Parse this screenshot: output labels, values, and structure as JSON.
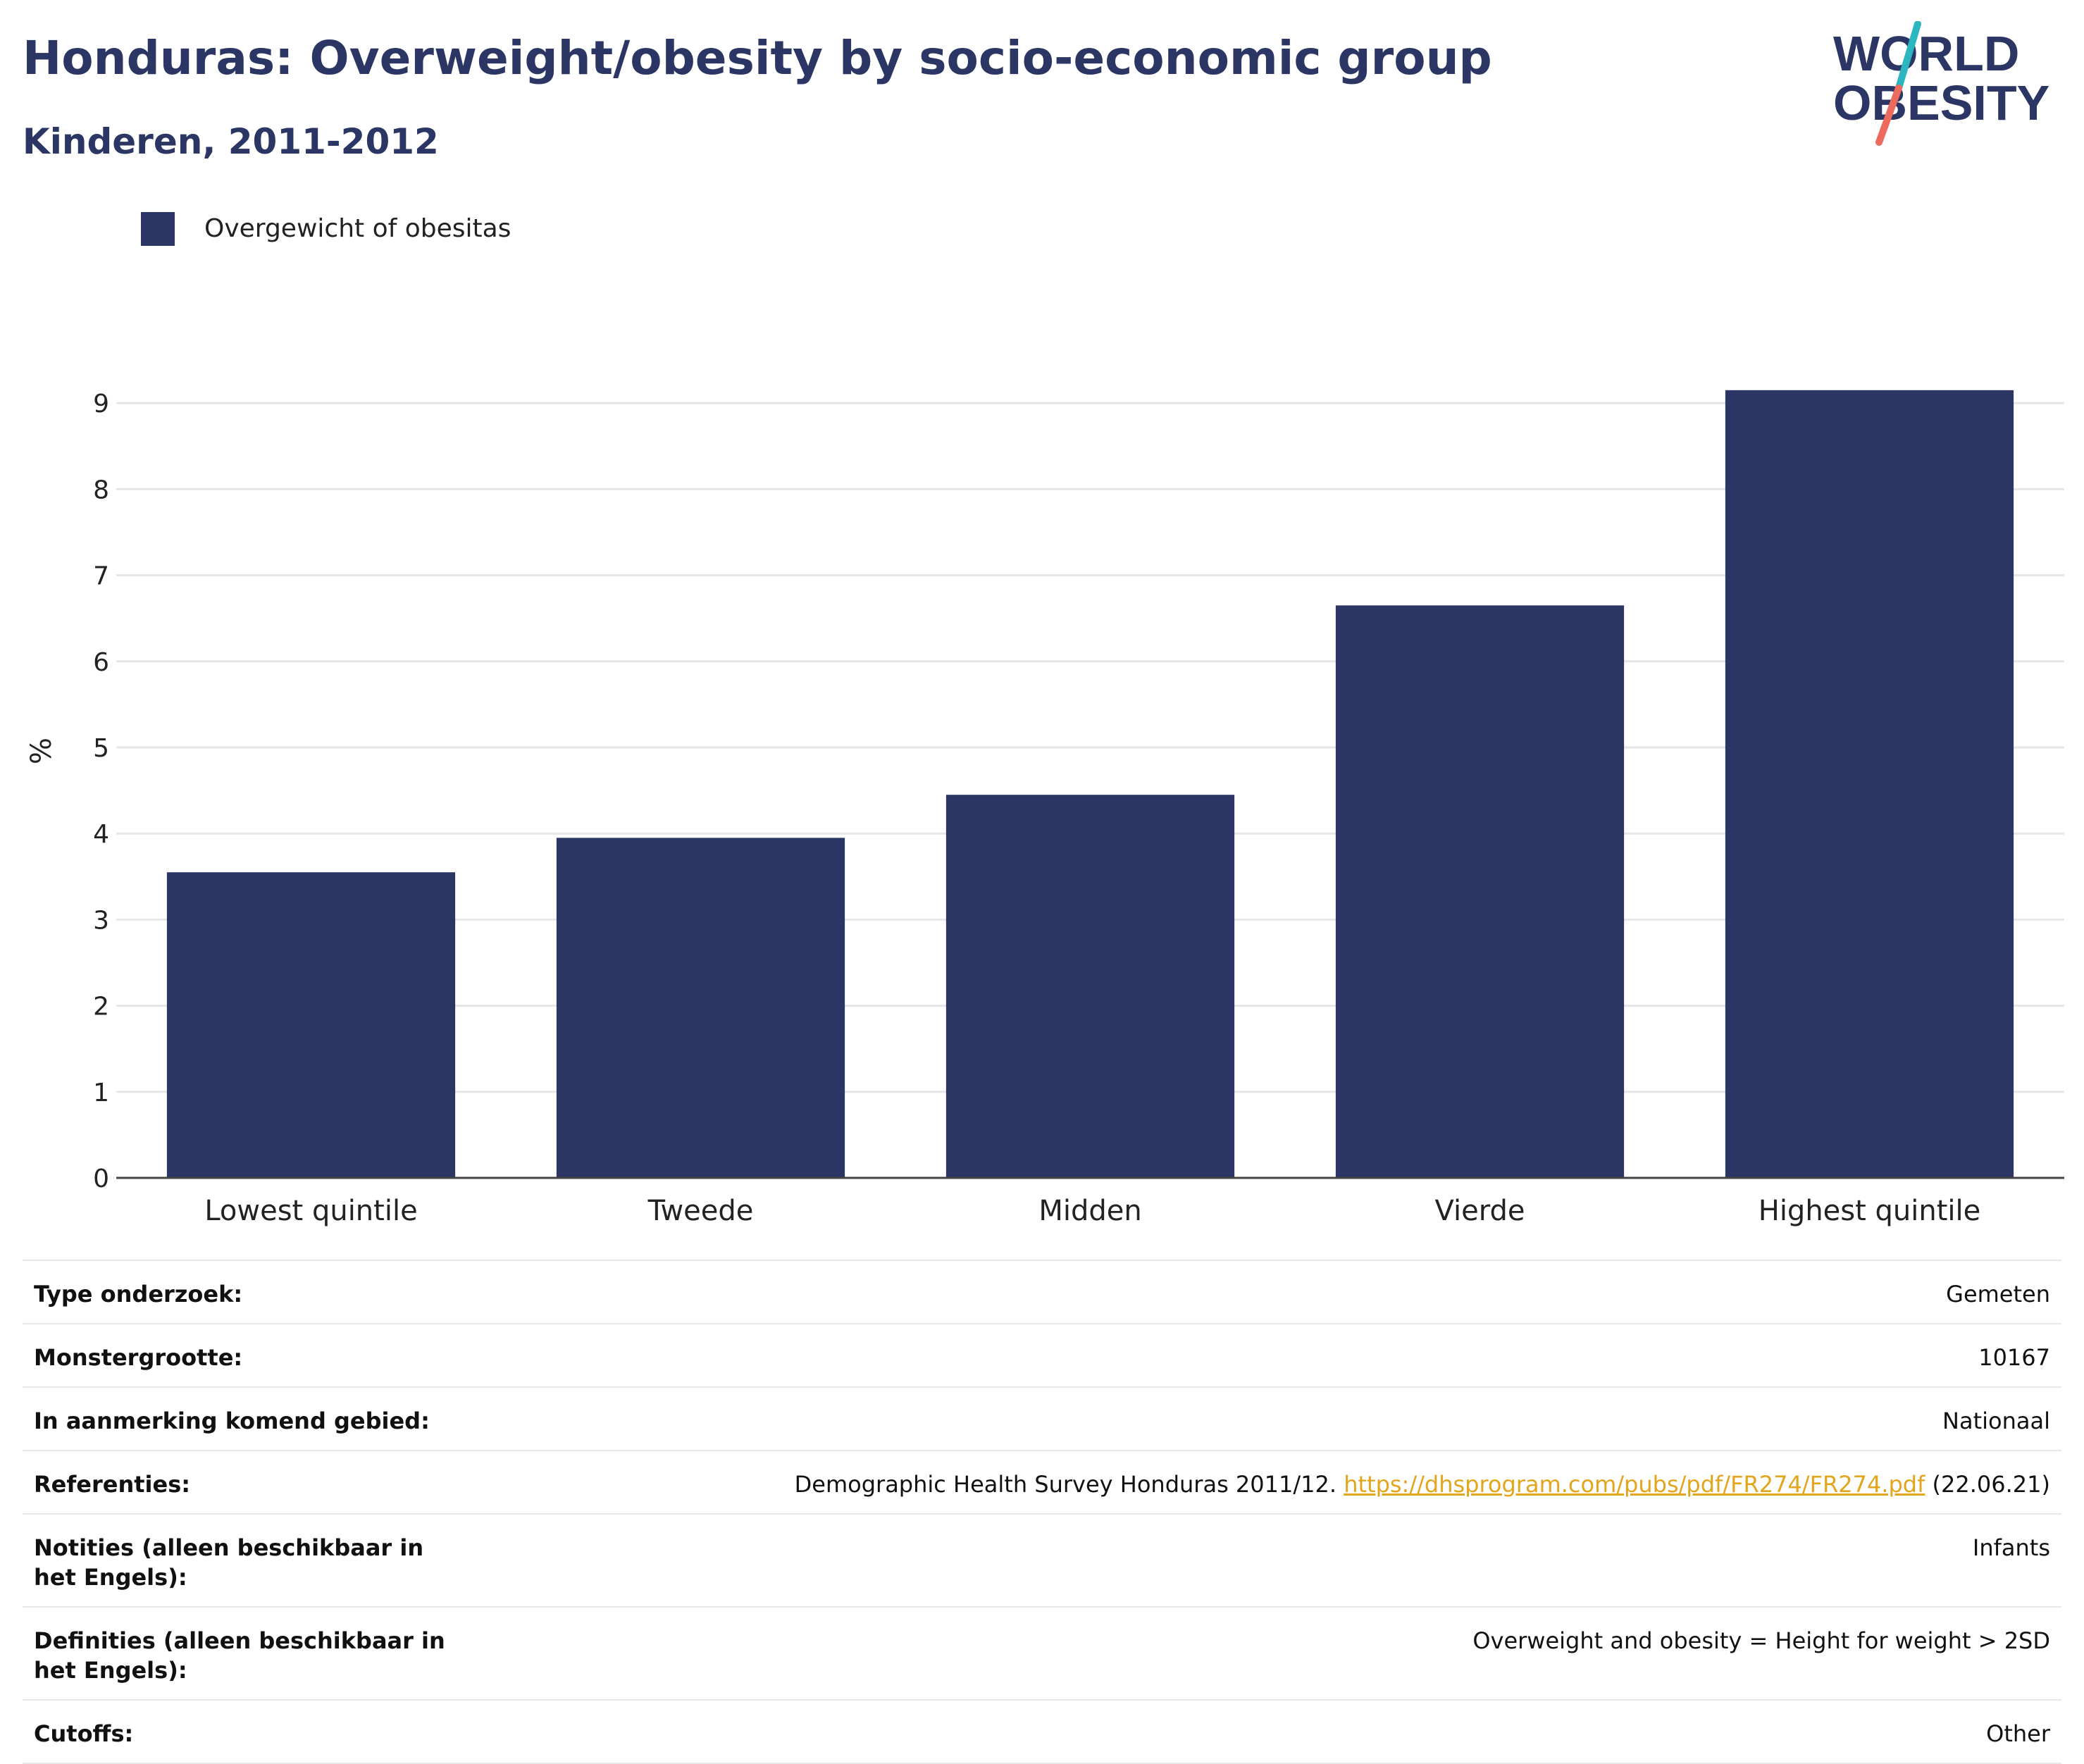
{
  "header": {
    "title": "Honduras: Overweight/obesity by socio-economic group",
    "subtitle": "Kinderen, 2011-2012"
  },
  "logo": {
    "line1": "WORLD",
    "line2": "OBESITY",
    "colors": {
      "text": "#2b3664",
      "slash_top": "#2bb6c0",
      "slash_bottom": "#ec6a5e"
    }
  },
  "legend": {
    "label": "Overgewicht of obesitas"
  },
  "chart_data": {
    "type": "bar",
    "categories": [
      "Lowest quintile",
      "Tweede",
      "Midden",
      "Vierde",
      "Highest quintile"
    ],
    "series": [
      {
        "name": "Overgewicht of obesitas",
        "values": [
          3.55,
          3.95,
          4.45,
          6.65,
          9.15
        ],
        "color": "#2b3664"
      }
    ],
    "ylabel": "%",
    "ylim": [
      0,
      10
    ],
    "yticks": [
      0,
      1,
      2,
      3,
      4,
      5,
      6,
      7,
      8,
      9
    ],
    "grid": true,
    "legend_position": "top-left"
  },
  "details": [
    {
      "key": "Type onderzoek:",
      "value": "Gemeten"
    },
    {
      "key": "Monstergrootte:",
      "value": "10167"
    },
    {
      "key": "In aanmerking komend gebied:",
      "value": "Nationaal"
    },
    {
      "key": "Referenties:",
      "value_prefix": "Demographic Health Survey Honduras 2011/12.",
      "link": "https://dhsprogram.com/pubs/pdf/FR274/FR274.pdf",
      "value_suffix": "(22.06.21)"
    },
    {
      "key": "Notities (alleen beschikbaar in het Engels):",
      "value": "Infants"
    },
    {
      "key": "Definities (alleen beschikbaar in het Engels):",
      "value": "Overweight and obesity = Height for weight > 2SD"
    },
    {
      "key": "Cutoffs:",
      "value": "Other"
    }
  ]
}
